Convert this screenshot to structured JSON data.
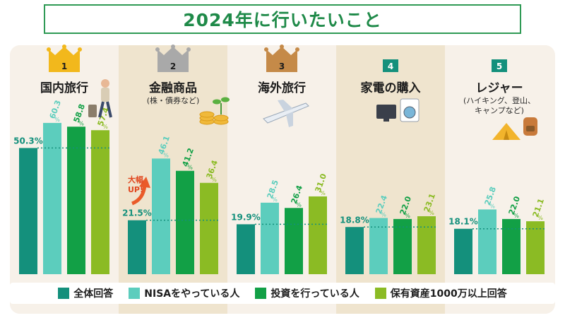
{
  "title": "2024年に行いたいこと",
  "colors": {
    "overall": "#14907c",
    "nisa": "#5ccdbd",
    "investing": "#12a046",
    "assets": "#8bbb24",
    "column_light": "#f7f1e9",
    "column_dark": "#efe4ce",
    "title_green": "#1f8a49"
  },
  "categories": [
    {
      "rank": "1",
      "label": "国内旅行",
      "sub": "",
      "crown": "gold",
      "icon": "traveler-icon"
    },
    {
      "rank": "2",
      "label": "金融商品",
      "sub": "(株・債券など)",
      "crown": "silver",
      "icon": "coins-sprout-icon"
    },
    {
      "rank": "3",
      "label": "海外旅行",
      "sub": "",
      "crown": "bronze",
      "icon": "airplane-icon"
    },
    {
      "rank": "4",
      "label": "家電の購入",
      "sub": "",
      "crown": "",
      "icon": "tv-washer-icon"
    },
    {
      "rank": "5",
      "label": "レジャー",
      "sub": "(ハイキング、登山、\nキャンプなど)",
      "crown": "",
      "icon": "tent-backpack-icon"
    }
  ],
  "callout": {
    "line1": "大幅",
    "line2": "UP!"
  },
  "chart_data": {
    "type": "bar",
    "title": "2024年に行いたいこと",
    "categories": [
      "国内旅行",
      "金融商品(株・債券など)",
      "海外旅行",
      "家電の購入",
      "レジャー(ハイキング、登山、キャンプなど)"
    ],
    "unit": "%",
    "series": [
      {
        "name": "全体回答",
        "values": [
          50.3,
          21.5,
          19.9,
          18.8,
          18.1
        ],
        "labels": [
          "50.3",
          "21.5",
          "19.9",
          "18.8",
          "18.1"
        ]
      },
      {
        "name": "NISAをやっている人",
        "values": [
          60.3,
          46.1,
          28.5,
          22.4,
          25.8
        ],
        "labels": [
          "60.3",
          "46.1",
          "28.5",
          "22.4",
          "25.8"
        ]
      },
      {
        "name": "投資を行っている人",
        "values": [
          58.8,
          41.2,
          26.4,
          22.0,
          22.0
        ],
        "labels": [
          "58.8",
          "41.2",
          "26.4",
          "22.0",
          "22.0"
        ]
      },
      {
        "name": "保有資産1000万以上回答",
        "values": [
          57.4,
          36.4,
          31.0,
          23.1,
          21.1
        ],
        "labels": [
          "57.4",
          "36.4",
          "31.0",
          "23.1",
          "21.1"
        ]
      }
    ],
    "reference_line": "dotted line at overall value across each group",
    "legend_position": "bottom",
    "grid": false
  },
  "legend": [
    {
      "label": "全体回答",
      "color_key": "overall"
    },
    {
      "label": "NISAをやっている人",
      "color_key": "nisa"
    },
    {
      "label": "投資を行っている人",
      "color_key": "investing"
    },
    {
      "label": "保有資産1000万以上回答",
      "color_key": "assets"
    }
  ]
}
